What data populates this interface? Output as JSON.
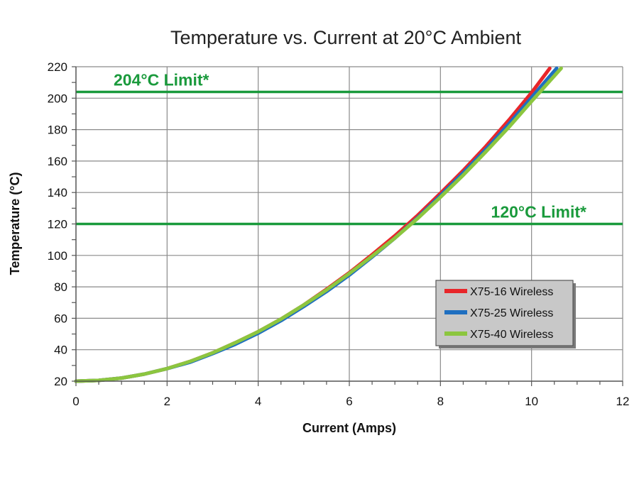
{
  "chart_data": {
    "type": "line",
    "title": "Temperature vs. Current at 20°C Ambient",
    "xlabel": "Current (Amps)",
    "ylabel": "Temperature (°C)",
    "xlim": [
      0,
      12
    ],
    "ylim": [
      20,
      220
    ],
    "x_ticks": [
      0,
      2,
      4,
      6,
      8,
      10,
      12
    ],
    "y_ticks": [
      20,
      40,
      60,
      80,
      100,
      120,
      140,
      160,
      180,
      200,
      220
    ],
    "grid": true,
    "legend_position": "bottom-right",
    "limits": [
      {
        "label": "204°C Limit*",
        "value": 204,
        "color": "#1a9a3c"
      },
      {
        "label": "120°C Limit*",
        "value": 120,
        "color": "#1a9a3c"
      }
    ],
    "series": [
      {
        "name": "X75-16 Wireless",
        "color": "#e8262a",
        "x": [
          0,
          0.5,
          1,
          1.5,
          2,
          2.5,
          3,
          3.5,
          4,
          4.5,
          5,
          5.5,
          6,
          6.5,
          7,
          7.5,
          8,
          8.5,
          9,
          9.5,
          10,
          10.4
        ],
        "y": [
          20,
          20.5,
          22,
          24.5,
          28,
          32.5,
          38,
          44.5,
          51.5,
          59.5,
          68.5,
          78.5,
          89,
          100.5,
          112.5,
          125.5,
          139.5,
          154,
          169.5,
          186,
          203.5,
          219
        ]
      },
      {
        "name": "X75-25 Wireless",
        "color": "#1f6fc0",
        "x": [
          0,
          0.5,
          1,
          1.5,
          2,
          2.5,
          3,
          3.5,
          4,
          4.5,
          5,
          5.5,
          6,
          6.5,
          7,
          7.5,
          8,
          8.5,
          9,
          9.5,
          10,
          10.55
        ],
        "y": [
          20,
          20.5,
          22,
          24.5,
          28,
          32,
          37.5,
          43.5,
          50.5,
          58.5,
          67.5,
          77,
          87.5,
          99,
          111,
          124,
          138,
          152.5,
          167.5,
          183.5,
          200.5,
          219
        ]
      },
      {
        "name": "X75-40 Wireless",
        "color": "#8cc63f",
        "x": [
          0,
          0.5,
          1,
          1.5,
          2,
          2.5,
          3,
          3.5,
          4,
          4.5,
          5,
          5.5,
          6,
          6.5,
          7,
          7.5,
          8,
          8.5,
          9,
          9.5,
          10,
          10.65
        ],
        "y": [
          20,
          20.5,
          22,
          24.5,
          28,
          32.5,
          38,
          44.5,
          51.5,
          59.5,
          68.5,
          78,
          88.5,
          99.5,
          111,
          123.5,
          137,
          151,
          166,
          181.5,
          198,
          219
        ]
      }
    ]
  }
}
